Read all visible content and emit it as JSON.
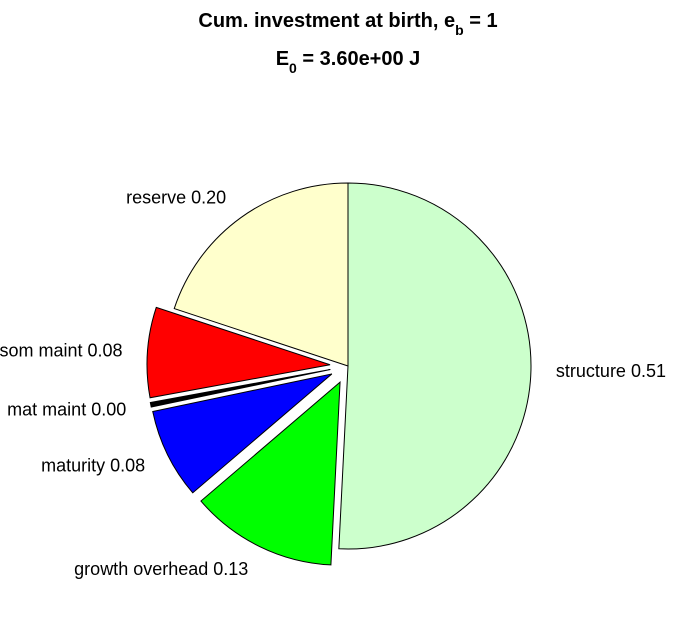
{
  "chart_data": {
    "type": "pie",
    "title": {
      "line1": {
        "text": "Cum. investment at birth, e",
        "sub": "b",
        "suffix": " = 1"
      },
      "line2": {
        "text": "E",
        "sub": "0",
        "suffix": " = 3.60e+00 J"
      }
    },
    "slices": [
      {
        "name": "structure",
        "value": 0.51,
        "label": "structure 0.51",
        "color": "#ccffcc",
        "exploded": false
      },
      {
        "name": "growth overhead",
        "value": 0.13,
        "label": "growth overhead 0.13",
        "color": "#00ff00",
        "exploded": true
      },
      {
        "name": "maturity",
        "value": 0.08,
        "label": "maturity 0.08",
        "color": "#0000ff",
        "exploded": true
      },
      {
        "name": "mat maint",
        "value": 0.004,
        "label": "mat maint 0.00",
        "color": "#000000",
        "exploded": true
      },
      {
        "name": "som maint",
        "value": 0.08,
        "label": "som maint 0.08",
        "color": "#ff0000",
        "exploded": true
      },
      {
        "name": "reserve",
        "value": 0.2,
        "label": "reserve 0.20",
        "color": "#ffffcc",
        "exploded": false
      }
    ]
  }
}
